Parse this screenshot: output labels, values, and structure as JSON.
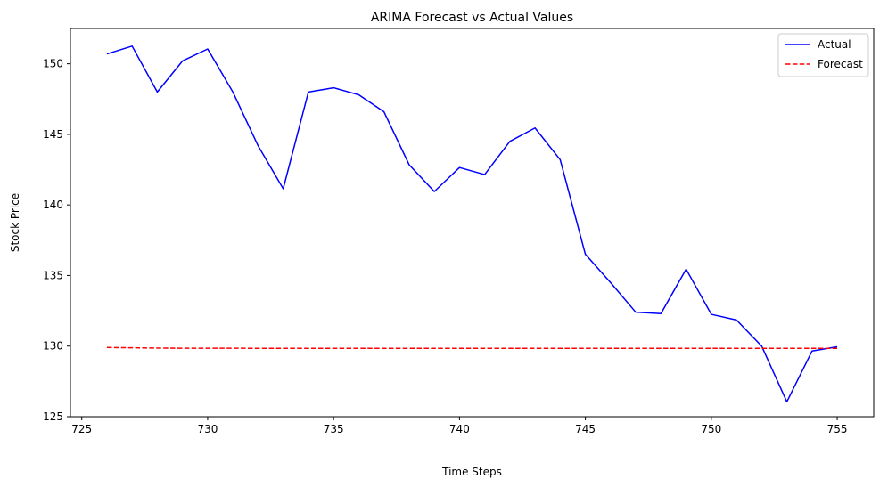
{
  "chart_data": {
    "type": "line",
    "title": "ARIMA Forecast vs Actual Values",
    "xlabel": "Time Steps",
    "ylabel": "Stock Price",
    "xlim": [
      724.55,
      756.45
    ],
    "ylim": [
      125.0,
      152.5
    ],
    "xticks": [
      725,
      730,
      735,
      740,
      745,
      750,
      755
    ],
    "yticks": [
      125,
      130,
      135,
      140,
      145,
      150
    ],
    "grid": false,
    "legend": {
      "placement": "top-right"
    },
    "x": [
      726,
      727,
      728,
      729,
      730,
      731,
      732,
      733,
      734,
      735,
      736,
      737,
      738,
      739,
      740,
      741,
      742,
      743,
      744,
      745,
      746,
      747,
      748,
      749,
      750,
      751,
      752,
      753,
      754,
      755
    ],
    "series": [
      {
        "name": "Actual",
        "color": "#0000ff",
        "style": "solid",
        "values": [
          150.7,
          151.25,
          148.0,
          150.2,
          151.05,
          148.0,
          144.2,
          141.15,
          148.0,
          148.3,
          147.8,
          146.6,
          142.85,
          140.95,
          142.65,
          142.15,
          144.5,
          145.45,
          143.2,
          136.5,
          134.5,
          132.4,
          132.3,
          135.45,
          132.25,
          131.85,
          130.0,
          126.05,
          129.65,
          129.95
        ]
      },
      {
        "name": "Forecast",
        "color": "#ff0000",
        "style": "dashed",
        "values": [
          129.9,
          129.88,
          129.86,
          129.85,
          129.85,
          129.85,
          129.84,
          129.84,
          129.84,
          129.84,
          129.84,
          129.84,
          129.84,
          129.84,
          129.84,
          129.84,
          129.84,
          129.84,
          129.84,
          129.84,
          129.84,
          129.84,
          129.84,
          129.84,
          129.84,
          129.84,
          129.84,
          129.84,
          129.84,
          129.84
        ]
      }
    ]
  }
}
